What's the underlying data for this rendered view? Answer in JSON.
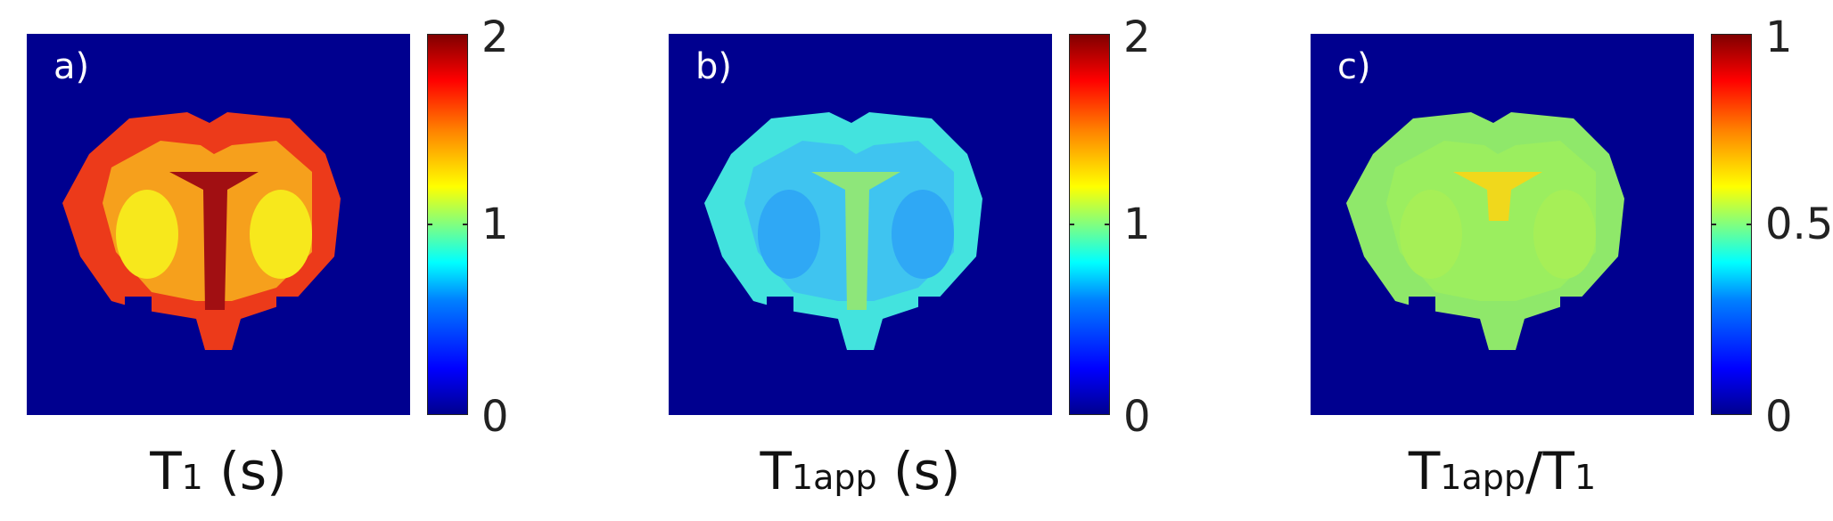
{
  "panels": [
    {
      "letter": "a)",
      "title": {
        "main": "T",
        "sub": "1",
        "rest": " (s)"
      },
      "colorbar": {
        "ticks": [
          "2",
          "1",
          "0"
        ],
        "min": 0,
        "max": 2
      },
      "fill": {
        "outer": "#ec3a1a",
        "mid": "#f6a01c",
        "core": "#f7e81c",
        "midline": "#a10f12"
      }
    },
    {
      "letter": "b)",
      "title": {
        "main": "T",
        "sub": "1app",
        "rest": " (s)"
      },
      "colorbar": {
        "ticks": [
          "2",
          "1",
          "0"
        ],
        "min": 0,
        "max": 2
      },
      "fill": {
        "outer": "#43e3de",
        "mid": "#3fc4f0",
        "core": "#2fa8f5",
        "midline": "#8ee67a"
      }
    },
    {
      "letter": "c)",
      "title": {
        "main": "T",
        "sub": "1app",
        "rest": "/T",
        "sub2": "1"
      },
      "colorbar": {
        "ticks": [
          "1",
          "0.5",
          "0"
        ],
        "min": 0,
        "max": 1
      },
      "fill": {
        "outer": "#8fe86a",
        "mid": "#9bee5f",
        "core": "#a6ef57",
        "midline": "#f0d81c"
      }
    }
  ],
  "colors": {
    "background": "#00008f"
  }
}
